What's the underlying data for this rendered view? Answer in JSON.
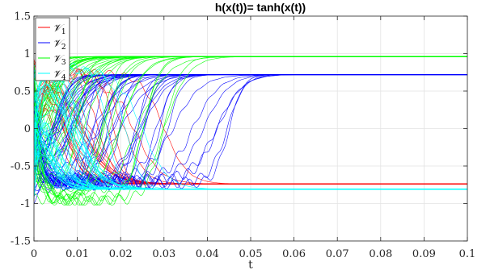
{
  "chart_data": {
    "type": "line",
    "title": "h(x(t))= tanh(x(t))",
    "xlabel": "t",
    "ylabel": "",
    "xlim": [
      0,
      0.1
    ],
    "ylim": [
      -1.5,
      1.5
    ],
    "xticks": [
      0,
      0.01,
      0.02,
      0.03,
      0.04,
      0.05,
      0.06,
      0.07,
      0.08,
      0.09,
      0.1
    ],
    "xtick_labels": [
      "0",
      "0.01",
      "0.02",
      "0.03",
      "0.04",
      "0.05",
      "0.06",
      "0.07",
      "0.08",
      "0.09",
      "0.1"
    ],
    "yticks": [
      -1.5,
      -1,
      -0.5,
      0,
      0.5,
      1,
      1.5
    ],
    "ytick_labels": [
      "-1.5",
      "-1",
      "-0.5",
      "0",
      "0.5",
      "1",
      "1.5"
    ],
    "grid": true,
    "legend_position": "top-left",
    "series": [
      {
        "name": "V1",
        "legend_main": "𝒱",
        "legend_sub": "1",
        "color": "#ff0000",
        "steady_state": -0.74,
        "transition_range": [
          0.004,
          0.03
        ],
        "curve_count": 22
      },
      {
        "name": "V2",
        "legend_main": "𝒱",
        "legend_sub": "2",
        "color": "#0000ff",
        "steady_state": 0.72,
        "transition_range": [
          0.004,
          0.045
        ],
        "curve_count": 48
      },
      {
        "name": "V3",
        "legend_main": "𝒱",
        "legend_sub": "3",
        "color": "#00ff00",
        "steady_state": 0.96,
        "transition_range": [
          0.0,
          0.03
        ],
        "curve_count": 40
      },
      {
        "name": "V4",
        "legend_main": "𝒱",
        "legend_sub": "4",
        "color": "#00ffff",
        "steady_state": -0.81,
        "transition_range": [
          0.0,
          0.025
        ],
        "curve_count": 40
      }
    ]
  }
}
